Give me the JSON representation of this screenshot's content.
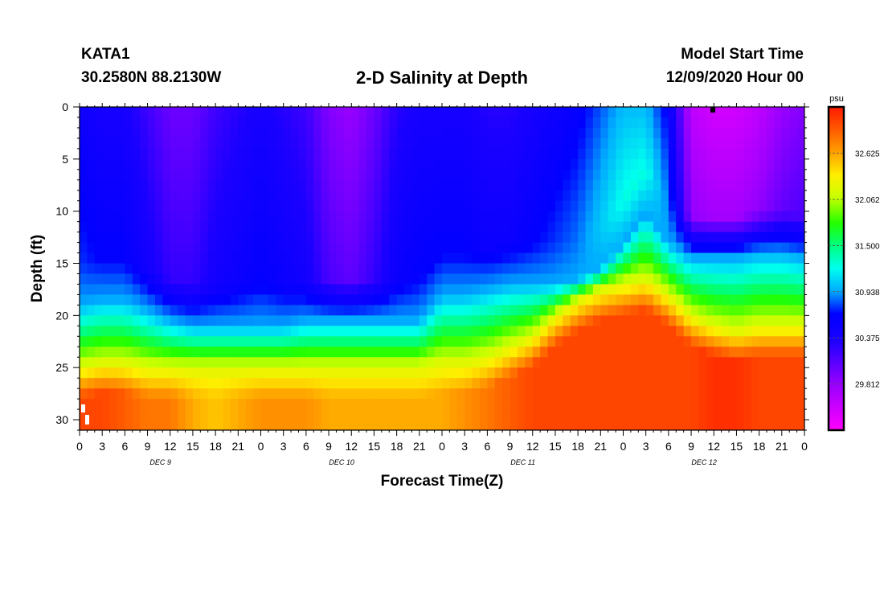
{
  "header": {
    "station": "KATA1",
    "coordinates": "30.2580N 88.2130W",
    "title": "2-D Salinity at Depth",
    "model_start_label": "Model Start Time",
    "model_start_value": "12/09/2020 Hour 00"
  },
  "chart_data": {
    "type": "heatmap",
    "title": "2-D Salinity at Depth",
    "xlabel": "Forecast Time(Z)",
    "ylabel": "Depth (ft)",
    "x_hours": [
      0,
      96
    ],
    "ylim": [
      0,
      31
    ],
    "y_ticks": [
      0,
      5,
      10,
      15,
      20,
      25,
      30
    ],
    "x_tick_labels": [
      "0",
      "3",
      "6",
      "9",
      "12",
      "15",
      "18",
      "21",
      "0",
      "3",
      "6",
      "9",
      "12",
      "15",
      "18",
      "21",
      "0",
      "3",
      "6",
      "9",
      "12",
      "15",
      "18",
      "21",
      "0",
      "3",
      "6",
      "9",
      "12",
      "15",
      "18",
      "21",
      "0"
    ],
    "day_labels": [
      {
        "text": "DEC 9",
        "hour": 10.5
      },
      {
        "text": "DEC 10",
        "hour": 34.5
      },
      {
        "text": "DEC 11",
        "hour": 58.5
      },
      {
        "text": "DEC 12",
        "hour": 82.5
      }
    ],
    "colorbar": {
      "unit": "psu",
      "vmin": 29.25,
      "vmax": 33.19,
      "tick_labels": [
        "32.625",
        "32.062",
        "31.500",
        "30.938",
        "30.375",
        "29.812"
      ],
      "tick_values": [
        32.625,
        32.062,
        31.5,
        30.938,
        30.375,
        29.812
      ]
    },
    "bands": {
      "hours": [
        0,
        3,
        6,
        9,
        12,
        15,
        18,
        21,
        24,
        27,
        30,
        33,
        36,
        39,
        42,
        45,
        48,
        51,
        54,
        57,
        60,
        63,
        66,
        69,
        72,
        75,
        78,
        81,
        84,
        87,
        90,
        93,
        96
      ],
      "mixing_depth_ft": [
        19.0,
        18.5,
        18.5,
        19.5,
        20.5,
        21.0,
        21.0,
        21.0,
        21.0,
        21.0,
        20.5,
        20.5,
        20.5,
        20.5,
        20.5,
        20.5,
        18.0,
        18.0,
        17.5,
        17.0,
        17.0,
        17.0,
        16.5,
        15.5,
        13.0,
        10.0,
        13.0,
        14.5,
        14.5,
        14.5,
        14.0,
        14.0,
        14.5
      ],
      "warm_depth_ft": [
        25.0,
        24.5,
        24.5,
        25.0,
        25.0,
        25.0,
        25.0,
        25.0,
        25.0,
        25.0,
        25.0,
        25.0,
        25.0,
        25.0,
        25.0,
        25.0,
        24.5,
        24.5,
        24.0,
        23.0,
        22.0,
        20.0,
        18.5,
        17.5,
        17.0,
        16.5,
        18.0,
        20.0,
        21.0,
        21.5,
        21.0,
        21.0,
        21.0
      ],
      "surface_salinity": [
        30.5,
        30.4,
        30.4,
        30.2,
        30.0,
        30.0,
        30.2,
        30.3,
        30.4,
        30.3,
        30.2,
        29.9,
        29.8,
        30.0,
        30.3,
        30.4,
        30.4,
        30.4,
        30.3,
        30.3,
        30.4,
        30.5,
        30.6,
        30.8,
        31.0,
        31.0,
        30.6,
        29.6,
        29.5,
        29.5,
        29.6,
        29.8,
        29.9
      ],
      "bottom_salinity": [
        33.0,
        33.0,
        32.9,
        32.8,
        32.8,
        32.6,
        32.5,
        32.6,
        32.7,
        32.7,
        32.7,
        32.6,
        32.6,
        32.6,
        32.6,
        32.6,
        32.6,
        32.7,
        32.8,
        32.9,
        33.0,
        33.0,
        33.0,
        33.0,
        33.0,
        33.0,
        33.0,
        33.0,
        33.1,
        33.1,
        33.0,
        33.0,
        33.0
      ]
    }
  }
}
